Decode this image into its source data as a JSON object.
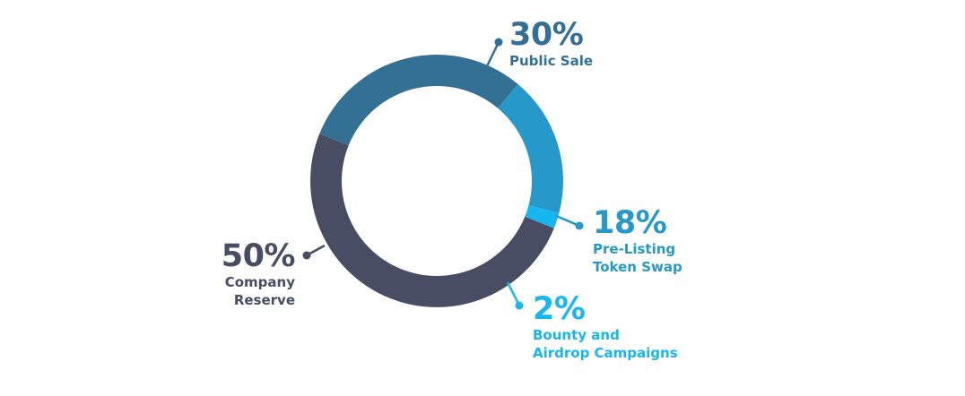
{
  "chart_data": {
    "type": "pie",
    "subtype": "donut",
    "start_angle_deg": -68,
    "direction": "clockwise",
    "series": [
      {
        "name": "Public Sale",
        "value": 30,
        "value_label": "30%",
        "label_lines": [
          "Public Sale"
        ],
        "color": "#346f94"
      },
      {
        "name": "Pre-Listing Token Swap",
        "value": 18,
        "value_label": "18%",
        "label_lines": [
          "Pre-Listing",
          "Token Swap"
        ],
        "color": "#2698ca"
      },
      {
        "name": "Bounty and Airdrop Campaigns",
        "value": 2,
        "value_label": "2%",
        "label_lines": [
          "Bounty and",
          "Airdrop Campaigns"
        ],
        "color": "#16b6f1"
      },
      {
        "name": "Company Reserve",
        "value": 50,
        "value_label": "50%",
        "label_lines": [
          "Company",
          "Reserve"
        ],
        "color": "#484d63"
      }
    ]
  }
}
